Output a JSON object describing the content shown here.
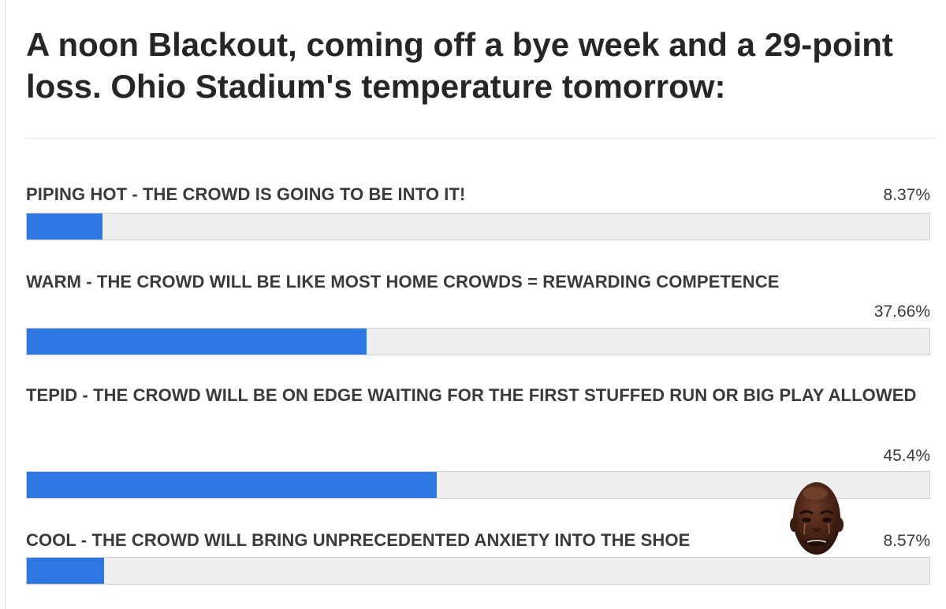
{
  "poll": {
    "question": "A noon Blackout, coming off a bye week and a 29-point loss. Ohio Stadium's temperature tomorrow:",
    "options": [
      {
        "label": "PIPING HOT - THE CROWD IS GOING TO BE INTO IT!",
        "percent_text": "8.37%",
        "percent": 8.37
      },
      {
        "label": "WARM - THE CROWD WILL BE LIKE MOST HOME CROWDS = REWARDING COMPETENCE",
        "percent_text": "37.66%",
        "percent": 37.66
      },
      {
        "label": "TEPID - THE CROWD WILL BE ON EDGE WAITING FOR THE FIRST STUFFED RUN OR BIG PLAY ALLOWED",
        "percent_text": "45.4%",
        "percent": 45.4
      },
      {
        "label": "COOL - THE CROWD WILL BRING UNPRECEDENTED ANXIETY INTO THE SHOE",
        "percent_text": "8.57%",
        "percent": 8.57
      }
    ]
  },
  "colors": {
    "bar_fill": "#2e76e2",
    "bar_track": "#efefef",
    "text": "#3a3a3a"
  },
  "icons": {
    "reaction": "crying-face-meme-icon"
  }
}
